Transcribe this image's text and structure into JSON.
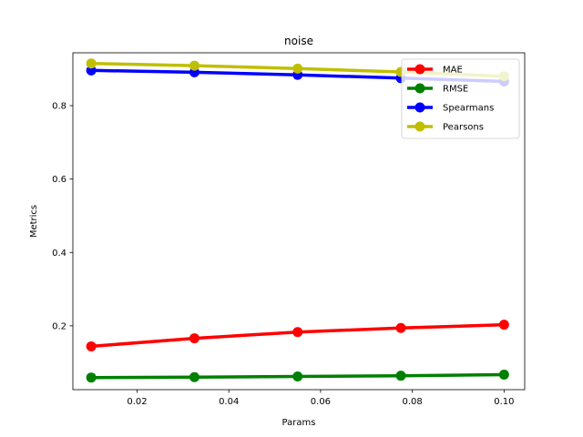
{
  "chart_data": {
    "type": "line",
    "title": "noise",
    "xlabel": "Params",
    "ylabel": "Metrics",
    "x": [
      0.01,
      0.0325,
      0.055,
      0.0775,
      0.1
    ],
    "xlim": [
      0.006,
      0.1045
    ],
    "ylim": [
      0.026,
      0.944
    ],
    "xticks": [
      0.02,
      0.04,
      0.06,
      0.08,
      0.1
    ],
    "xtick_labels": [
      "0.02",
      "0.04",
      "0.06",
      "0.08",
      "0.10"
    ],
    "yticks": [
      0.2,
      0.4,
      0.6,
      0.8
    ],
    "ytick_labels": [
      "0.2",
      "0.4",
      "0.6",
      "0.8"
    ],
    "grid": false,
    "legend_position": "top-right",
    "series": [
      {
        "name": "MAE",
        "color": "#ff0000",
        "values": [
          0.144,
          0.166,
          0.183,
          0.194,
          0.203
        ]
      },
      {
        "name": "RMSE",
        "color": "#008000",
        "values": [
          0.059,
          0.06,
          0.062,
          0.064,
          0.067
        ]
      },
      {
        "name": "Spearmans",
        "color": "#0000ff",
        "values": [
          0.896,
          0.891,
          0.884,
          0.875,
          0.866
        ]
      },
      {
        "name": "Pearsons",
        "color": "#bfbf00",
        "values": [
          0.915,
          0.909,
          0.901,
          0.892,
          0.88
        ]
      }
    ]
  }
}
